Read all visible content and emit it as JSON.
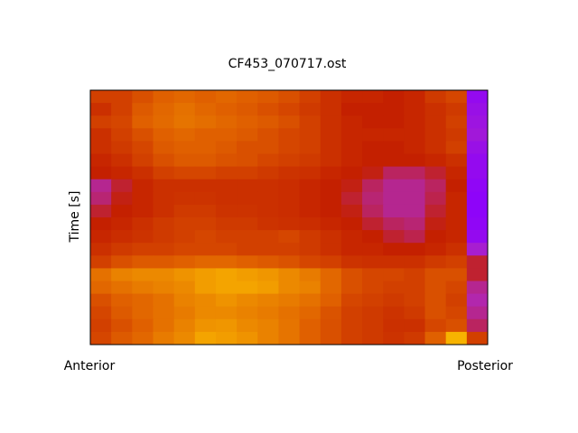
{
  "chart_data": {
    "type": "heatmap",
    "title": "CF453_070717.ost",
    "ylabel": "Time [s]",
    "x_end_labels": [
      "Anterior",
      "Posterior"
    ],
    "zlim": [
      0,
      1
    ],
    "colormap": [
      "#8a00ff",
      "#b028c0",
      "#c42000",
      "#e06000",
      "#f4a400",
      "#ffe000"
    ],
    "z": [
      [
        0.5,
        0.5,
        0.55,
        0.6,
        0.62,
        0.6,
        0.62,
        0.6,
        0.58,
        0.55,
        0.5,
        0.45,
        0.42,
        0.42,
        0.4,
        0.42,
        0.48,
        0.52,
        0.05
      ],
      [
        0.45,
        0.5,
        0.58,
        0.62,
        0.65,
        0.62,
        0.6,
        0.58,
        0.55,
        0.52,
        0.48,
        0.45,
        0.4,
        0.4,
        0.4,
        0.42,
        0.45,
        0.48,
        0.08
      ],
      [
        0.5,
        0.52,
        0.6,
        0.63,
        0.66,
        0.64,
        0.62,
        0.6,
        0.58,
        0.55,
        0.5,
        0.45,
        0.42,
        0.4,
        0.4,
        0.42,
        0.45,
        0.5,
        0.1
      ],
      [
        0.45,
        0.5,
        0.55,
        0.6,
        0.62,
        0.6,
        0.6,
        0.58,
        0.55,
        0.52,
        0.5,
        0.45,
        0.42,
        0.42,
        0.42,
        0.42,
        0.45,
        0.48,
        0.12
      ],
      [
        0.45,
        0.48,
        0.52,
        0.58,
        0.6,
        0.6,
        0.58,
        0.55,
        0.55,
        0.52,
        0.5,
        0.45,
        0.42,
        0.4,
        0.4,
        0.42,
        0.45,
        0.5,
        0.08
      ],
      [
        0.42,
        0.45,
        0.5,
        0.55,
        0.58,
        0.58,
        0.56,
        0.55,
        0.52,
        0.5,
        0.48,
        0.45,
        0.42,
        0.4,
        0.4,
        0.4,
        0.42,
        0.45,
        0.05
      ],
      [
        0.4,
        0.42,
        0.45,
        0.5,
        0.52,
        0.52,
        0.5,
        0.5,
        0.48,
        0.46,
        0.45,
        0.42,
        0.4,
        0.38,
        0.3,
        0.3,
        0.35,
        0.42,
        0.05
      ],
      [
        0.25,
        0.35,
        0.42,
        0.45,
        0.45,
        0.45,
        0.45,
        0.45,
        0.45,
        0.44,
        0.42,
        0.4,
        0.38,
        0.3,
        0.25,
        0.25,
        0.3,
        0.4,
        0.03
      ],
      [
        0.28,
        0.38,
        0.42,
        0.45,
        0.46,
        0.46,
        0.45,
        0.45,
        0.45,
        0.44,
        0.42,
        0.4,
        0.35,
        0.28,
        0.25,
        0.25,
        0.32,
        0.42,
        0.02
      ],
      [
        0.35,
        0.4,
        0.42,
        0.45,
        0.48,
        0.48,
        0.46,
        0.46,
        0.45,
        0.44,
        0.42,
        0.4,
        0.38,
        0.3,
        0.25,
        0.25,
        0.35,
        0.42,
        0.02
      ],
      [
        0.4,
        0.42,
        0.45,
        0.48,
        0.5,
        0.5,
        0.48,
        0.48,
        0.46,
        0.45,
        0.44,
        0.42,
        0.4,
        0.35,
        0.3,
        0.28,
        0.38,
        0.42,
        0.03
      ],
      [
        0.42,
        0.44,
        0.46,
        0.48,
        0.5,
        0.52,
        0.5,
        0.5,
        0.5,
        0.52,
        0.48,
        0.45,
        0.42,
        0.4,
        0.35,
        0.32,
        0.4,
        0.42,
        0.05
      ],
      [
        0.45,
        0.48,
        0.5,
        0.5,
        0.52,
        0.52,
        0.52,
        0.5,
        0.5,
        0.5,
        0.48,
        0.45,
        0.42,
        0.42,
        0.4,
        0.4,
        0.42,
        0.45,
        0.15
      ],
      [
        0.5,
        0.55,
        0.58,
        0.58,
        0.6,
        0.62,
        0.62,
        0.6,
        0.58,
        0.56,
        0.52,
        0.5,
        0.46,
        0.45,
        0.45,
        0.45,
        0.48,
        0.5,
        0.35
      ],
      [
        0.65,
        0.7,
        0.72,
        0.72,
        0.75,
        0.78,
        0.8,
        0.78,
        0.76,
        0.72,
        0.68,
        0.62,
        0.55,
        0.52,
        0.52,
        0.5,
        0.55,
        0.55,
        0.35
      ],
      [
        0.62,
        0.65,
        0.68,
        0.7,
        0.72,
        0.78,
        0.8,
        0.8,
        0.78,
        0.72,
        0.7,
        0.62,
        0.55,
        0.52,
        0.5,
        0.5,
        0.55,
        0.52,
        0.25
      ],
      [
        0.55,
        0.6,
        0.62,
        0.65,
        0.7,
        0.72,
        0.75,
        0.72,
        0.7,
        0.68,
        0.65,
        0.6,
        0.52,
        0.5,
        0.48,
        0.5,
        0.55,
        0.5,
        0.22
      ],
      [
        0.52,
        0.58,
        0.62,
        0.65,
        0.68,
        0.72,
        0.72,
        0.7,
        0.68,
        0.65,
        0.62,
        0.56,
        0.5,
        0.48,
        0.46,
        0.48,
        0.55,
        0.52,
        0.25
      ],
      [
        0.5,
        0.55,
        0.6,
        0.65,
        0.7,
        0.75,
        0.76,
        0.72,
        0.7,
        0.66,
        0.6,
        0.55,
        0.5,
        0.48,
        0.45,
        0.45,
        0.52,
        0.55,
        0.3
      ],
      [
        0.52,
        0.58,
        0.62,
        0.68,
        0.72,
        0.8,
        0.78,
        0.75,
        0.7,
        0.66,
        0.6,
        0.55,
        0.5,
        0.48,
        0.46,
        0.48,
        0.6,
        0.85,
        0.5
      ]
    ]
  }
}
